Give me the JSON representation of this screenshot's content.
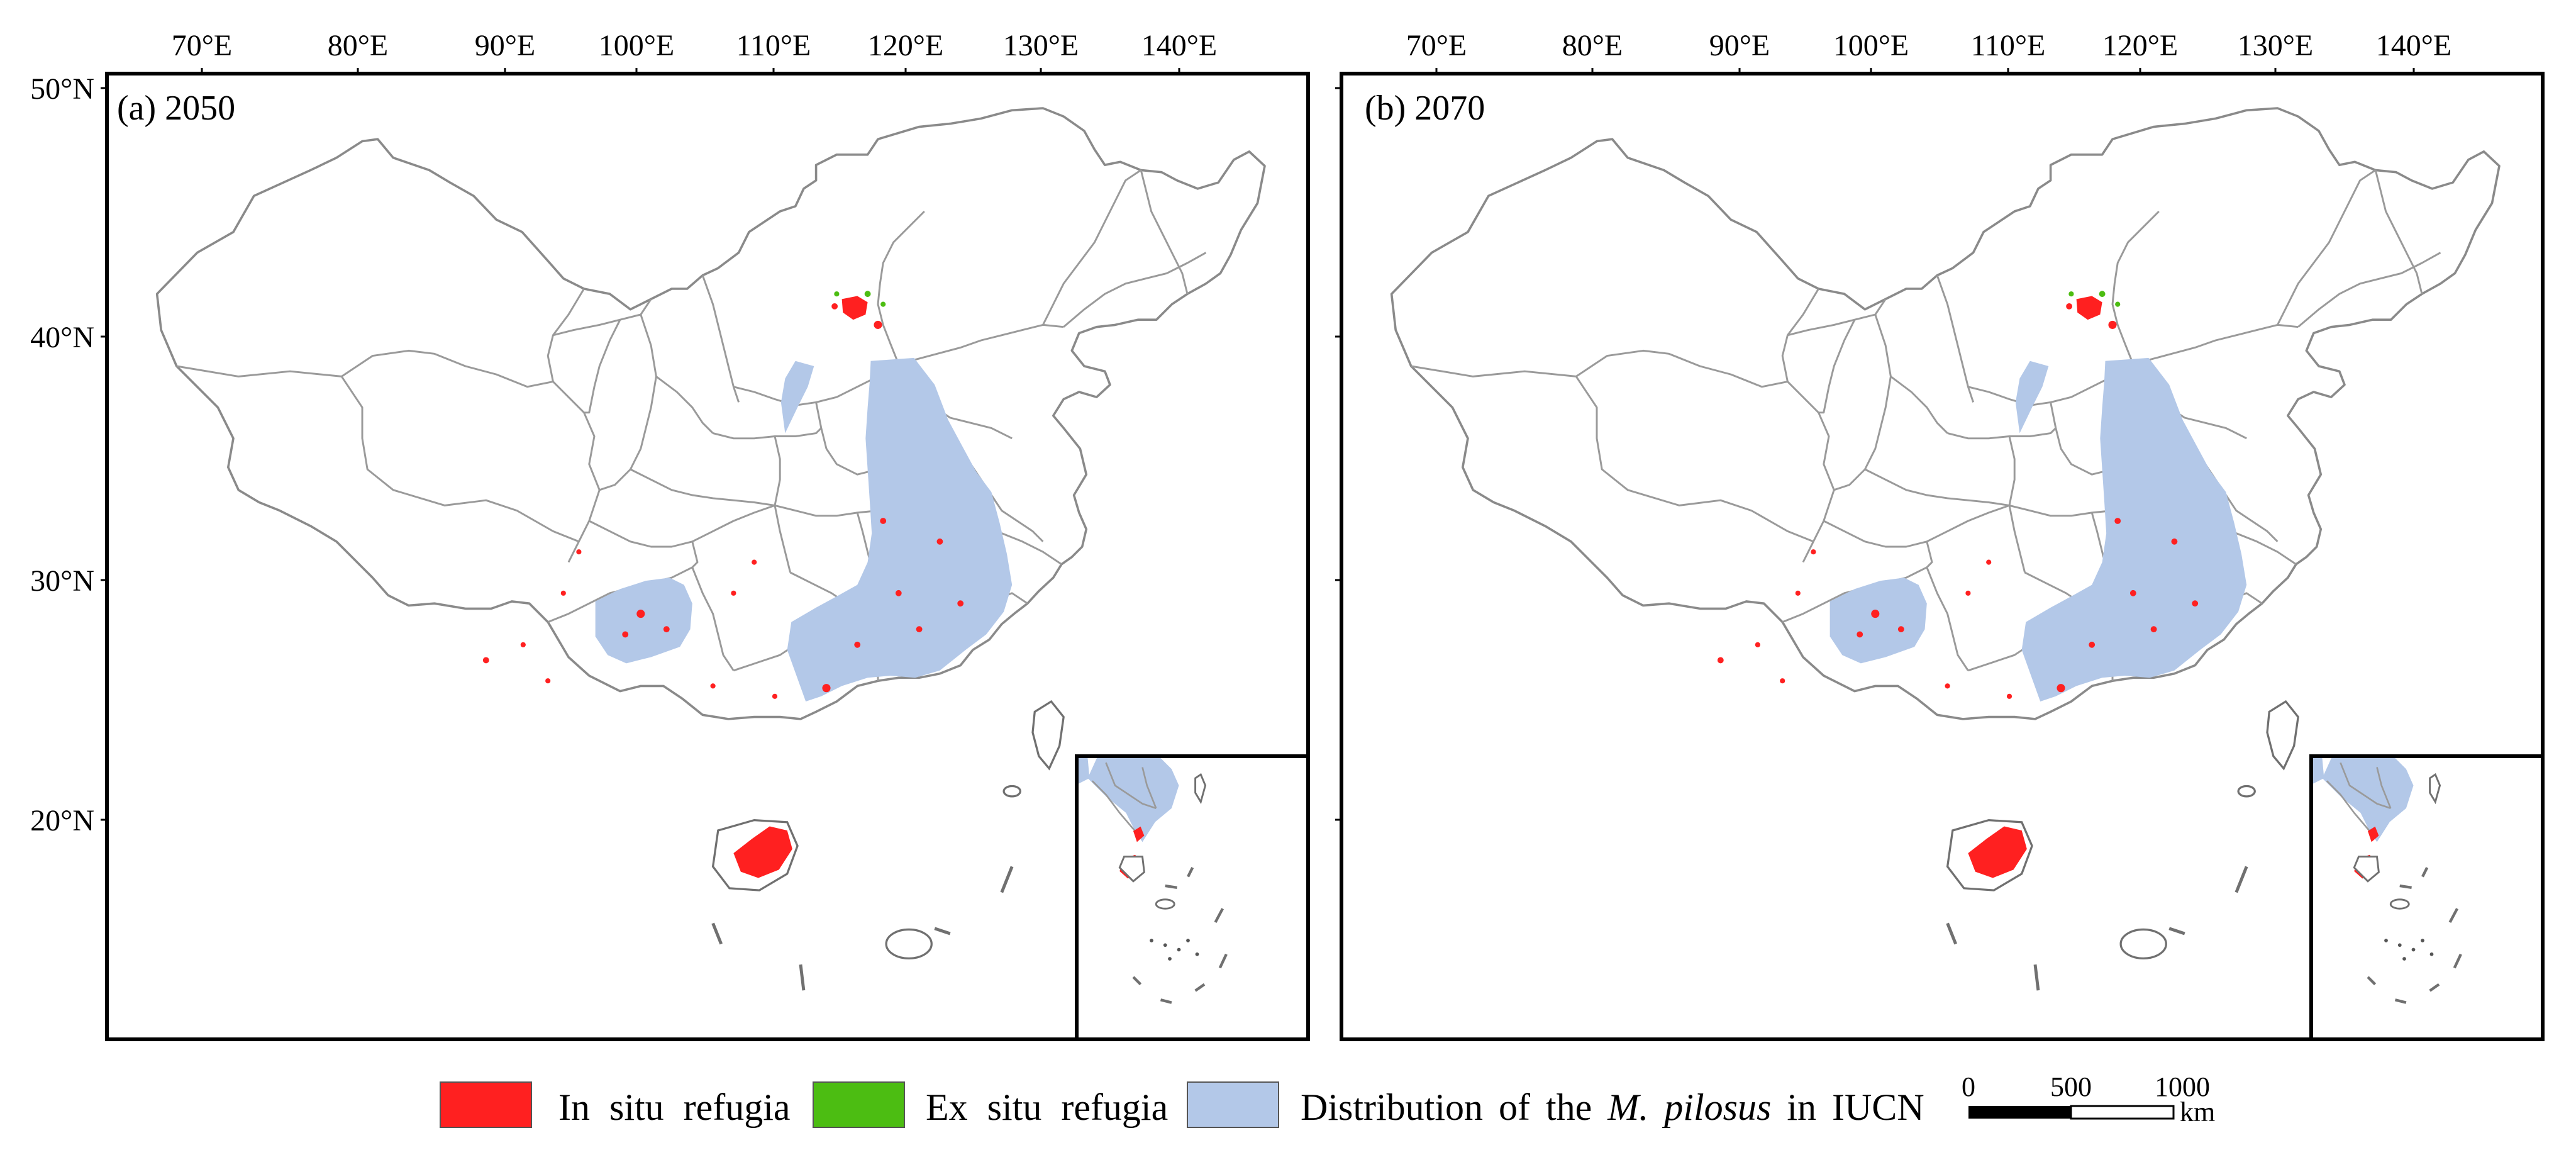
{
  "figure": {
    "panels": [
      {
        "id": "a",
        "title": "(a) 2050"
      },
      {
        "id": "b",
        "title": "(b) 2070"
      }
    ],
    "lon_ticks": [
      "70°E",
      "80°E",
      "90°E",
      "100°E",
      "110°E",
      "120°E",
      "130°E",
      "140°E"
    ],
    "lat_ticks": [
      "50°N",
      "40°N",
      "30°N",
      "20°N"
    ],
    "legend": {
      "in_situ": {
        "label": "In situ refugia",
        "color": "#ff2020"
      },
      "ex_situ": {
        "label": "Ex situ refugia",
        "color": "#4cbd12"
      },
      "distribution": {
        "label_prefix": "Distribution of the ",
        "species": "M. pilosus",
        "label_suffix": " in IUCN",
        "color": "#b3c8e8"
      }
    },
    "scale_bar": {
      "labels": [
        "0",
        "500",
        "1000"
      ],
      "unit": "km"
    }
  }
}
